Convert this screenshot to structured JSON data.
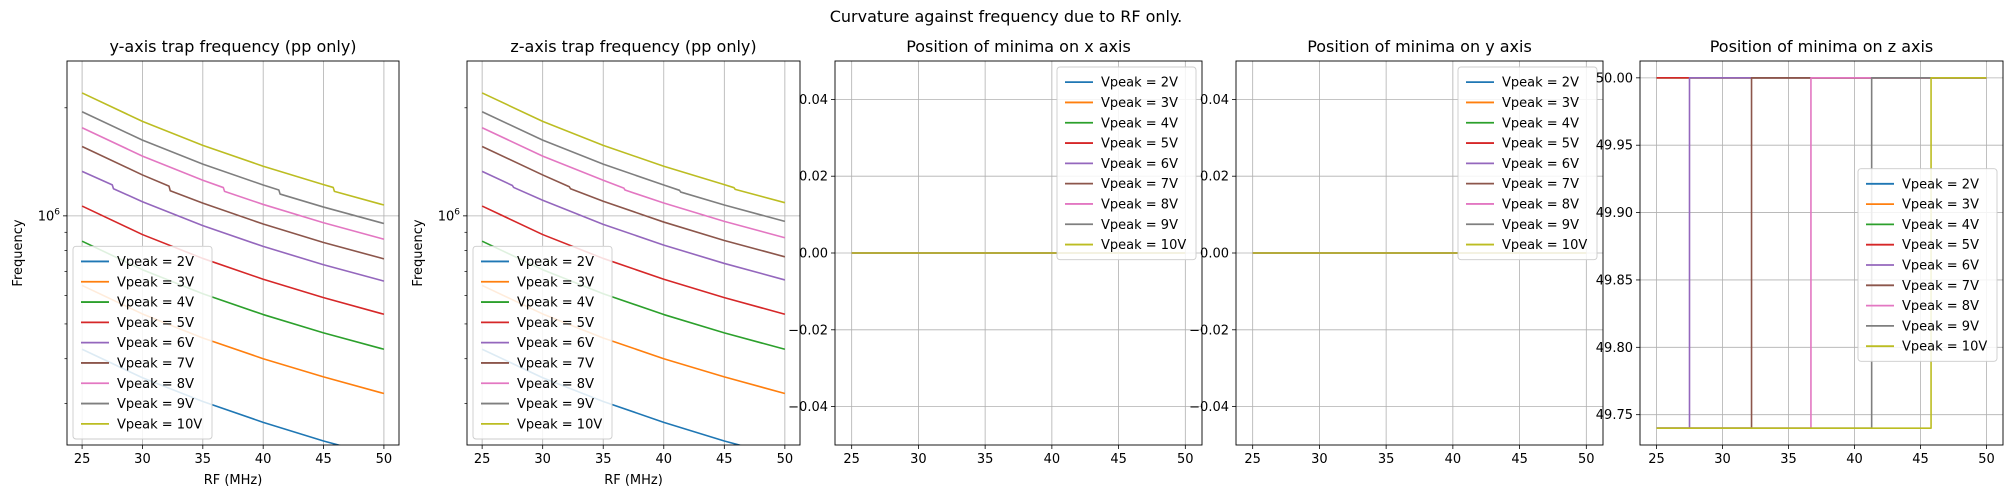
{
  "figure": {
    "suptitle": "Curvature against frequency due to RF only."
  },
  "chart_data": [
    {
      "type": "line",
      "title": "y-axis trap frequency (pp only)",
      "xlabel": "RF (MHz)",
      "ylabel": "Frequency",
      "xlim": [
        23.75,
        51.25
      ],
      "xticks": [
        25,
        30,
        35,
        40,
        45,
        50
      ],
      "yscale": "log",
      "ylim": [
        230000,
        2700000
      ],
      "yticks": [
        {
          "value": 1000000,
          "label": "10^6"
        }
      ],
      "grid": true,
      "legend": "lower-left",
      "series": [
        {
          "name": "Vpeak = 2V",
          "color": "#1f77b4",
          "x": [
            25,
            30,
            35,
            40,
            45,
            50
          ],
          "y": [
            425000,
            354000,
            304000,
            266000,
            236000,
            212500
          ]
        },
        {
          "name": "Vpeak = 3V",
          "color": "#ff7f0e",
          "x": [
            25,
            30,
            35,
            40,
            45,
            50
          ],
          "y": [
            640000,
            533000,
            457000,
            400000,
            356000,
            320000
          ]
        },
        {
          "name": "Vpeak = 4V",
          "color": "#2ca02c",
          "x": [
            25,
            30,
            35,
            40,
            45,
            50
          ],
          "y": [
            850000,
            708000,
            607000,
            531000,
            472000,
            425000
          ]
        },
        {
          "name": "Vpeak = 5V",
          "color": "#d62728",
          "x": [
            25,
            30,
            35,
            40,
            45,
            50
          ],
          "y": [
            1065000,
            887000,
            761000,
            666000,
            592000,
            532000
          ]
        },
        {
          "name": "Vpeak = 6V",
          "color": "#9467bd",
          "x": [
            25,
            27.5,
            27.6,
            30,
            35,
            40,
            45,
            50
          ],
          "y": [
            1330000,
            1220000,
            1190000,
            1095000,
            939000,
            822000,
            731000,
            658000
          ]
        },
        {
          "name": "Vpeak = 7V",
          "color": "#8c564b",
          "x": [
            25,
            30,
            32.2,
            32.3,
            35,
            40,
            45,
            50
          ],
          "y": [
            1560000,
            1300000,
            1210000,
            1175000,
            1085000,
            949000,
            843000,
            759000
          ]
        },
        {
          "name": "Vpeak = 8V",
          "color": "#e377c2",
          "x": [
            25,
            30,
            35,
            36.7,
            36.8,
            40,
            45,
            50
          ],
          "y": [
            1760000,
            1467000,
            1257000,
            1199000,
            1170000,
            1076000,
            957000,
            861000
          ]
        },
        {
          "name": "Vpeak = 9V",
          "color": "#7f7f7f",
          "x": [
            25,
            30,
            35,
            40,
            41.3,
            41.4,
            45,
            50
          ],
          "y": [
            1950000,
            1625000,
            1393000,
            1219000,
            1180000,
            1150000,
            1058000,
            952000
          ]
        },
        {
          "name": "Vpeak = 10V",
          "color": "#bcbd22",
          "x": [
            25,
            30,
            35,
            40,
            45,
            45.8,
            45.9,
            50
          ],
          "y": [
            2200000,
            1833000,
            1571000,
            1375000,
            1222000,
            1200000,
            1170000,
            1072000
          ]
        }
      ]
    },
    {
      "type": "line",
      "title": "z-axis trap frequency (pp only)",
      "xlabel": "RF (MHz)",
      "ylabel": "Frequency",
      "xlim": [
        23.75,
        51.25
      ],
      "xticks": [
        25,
        30,
        35,
        40,
        45,
        50
      ],
      "yscale": "log",
      "ylim": [
        230000,
        2700000
      ],
      "yticks": [
        {
          "value": 1000000,
          "label": "10^6"
        }
      ],
      "grid": true,
      "legend": "lower-left",
      "series": [
        {
          "name": "Vpeak = 2V",
          "color": "#1f77b4",
          "x": [
            25,
            30,
            35,
            40,
            45,
            50
          ],
          "y": [
            425000,
            354000,
            304000,
            266000,
            236000,
            212500
          ]
        },
        {
          "name": "Vpeak = 3V",
          "color": "#ff7f0e",
          "x": [
            25,
            30,
            35,
            40,
            45,
            50
          ],
          "y": [
            640000,
            533000,
            457000,
            400000,
            356000,
            320000
          ]
        },
        {
          "name": "Vpeak = 4V",
          "color": "#2ca02c",
          "x": [
            25,
            30,
            35,
            40,
            45,
            50
          ],
          "y": [
            850000,
            708000,
            607000,
            531000,
            472000,
            425000
          ]
        },
        {
          "name": "Vpeak = 5V",
          "color": "#d62728",
          "x": [
            25,
            30,
            35,
            40,
            45,
            50
          ],
          "y": [
            1065000,
            887000,
            761000,
            666000,
            592000,
            532000
          ]
        },
        {
          "name": "Vpeak = 6V",
          "color": "#9467bd",
          "x": [
            25,
            27.5,
            27.6,
            30,
            35,
            40,
            45,
            50
          ],
          "y": [
            1330000,
            1215000,
            1200000,
            1105000,
            947000,
            829000,
            737000,
            663000
          ]
        },
        {
          "name": "Vpeak = 7V",
          "color": "#8c564b",
          "x": [
            25,
            30,
            32.2,
            32.3,
            35,
            40,
            45,
            50
          ],
          "y": [
            1560000,
            1300000,
            1205000,
            1190000,
            1098000,
            961000,
            854000,
            769000
          ]
        },
        {
          "name": "Vpeak = 8V",
          "color": "#e377c2",
          "x": [
            25,
            30,
            35,
            36.7,
            36.8,
            40,
            45,
            50
          ],
          "y": [
            1760000,
            1467000,
            1257000,
            1195000,
            1180000,
            1086000,
            965000,
            869000
          ]
        },
        {
          "name": "Vpeak = 9V",
          "color": "#7f7f7f",
          "x": [
            25,
            30,
            35,
            40,
            41.3,
            41.4,
            45,
            50
          ],
          "y": [
            1950000,
            1625000,
            1393000,
            1219000,
            1178000,
            1165000,
            1072000,
            965000
          ]
        },
        {
          "name": "Vpeak = 10V",
          "color": "#bcbd22",
          "x": [
            25,
            30,
            35,
            40,
            45,
            45.8,
            45.9,
            50
          ],
          "y": [
            2200000,
            1833000,
            1571000,
            1375000,
            1222000,
            1198000,
            1185000,
            1088000
          ]
        }
      ]
    },
    {
      "type": "line",
      "title": "Position of minima on x axis",
      "xlabel": "",
      "ylabel": "",
      "xlim": [
        23.75,
        51.25
      ],
      "xticks": [
        25,
        30,
        35,
        40,
        45,
        50
      ],
      "yscale": "linear",
      "ylim": [
        -0.05,
        0.05
      ],
      "yticks": [
        {
          "value": 0.04,
          "label": "0.04"
        },
        {
          "value": 0.02,
          "label": "0.02"
        },
        {
          "value": 0,
          "label": "0.00"
        },
        {
          "value": -0.02,
          "label": "−0.02"
        },
        {
          "value": -0.04,
          "label": "−0.04"
        }
      ],
      "grid": true,
      "legend": "upper-right",
      "series": [
        {
          "name": "Vpeak = 2V",
          "color": "#1f77b4",
          "x": [
            25,
            50
          ],
          "y": [
            0,
            0
          ]
        },
        {
          "name": "Vpeak = 3V",
          "color": "#ff7f0e",
          "x": [
            25,
            50
          ],
          "y": [
            0,
            0
          ]
        },
        {
          "name": "Vpeak = 4V",
          "color": "#2ca02c",
          "x": [
            25,
            50
          ],
          "y": [
            0,
            0
          ]
        },
        {
          "name": "Vpeak = 5V",
          "color": "#d62728",
          "x": [
            25,
            50
          ],
          "y": [
            0,
            0
          ]
        },
        {
          "name": "Vpeak = 6V",
          "color": "#9467bd",
          "x": [
            25,
            50
          ],
          "y": [
            0,
            0
          ]
        },
        {
          "name": "Vpeak = 7V",
          "color": "#8c564b",
          "x": [
            25,
            50
          ],
          "y": [
            0,
            0
          ]
        },
        {
          "name": "Vpeak = 8V",
          "color": "#e377c2",
          "x": [
            25,
            50
          ],
          "y": [
            0,
            0
          ]
        },
        {
          "name": "Vpeak = 9V",
          "color": "#7f7f7f",
          "x": [
            25,
            50
          ],
          "y": [
            0,
            0
          ]
        },
        {
          "name": "Vpeak = 10V",
          "color": "#bcbd22",
          "x": [
            25,
            50
          ],
          "y": [
            0,
            0
          ]
        }
      ]
    },
    {
      "type": "line",
      "title": "Position of minima on y axis",
      "xlabel": "",
      "ylabel": "",
      "xlim": [
        23.75,
        51.25
      ],
      "xticks": [
        25,
        30,
        35,
        40,
        45,
        50
      ],
      "yscale": "linear",
      "ylim": [
        -0.05,
        0.05
      ],
      "yticks": [
        {
          "value": 0.04,
          "label": "0.04"
        },
        {
          "value": 0.02,
          "label": "0.02"
        },
        {
          "value": 0,
          "label": "0.00"
        },
        {
          "value": -0.02,
          "label": "−0.02"
        },
        {
          "value": -0.04,
          "label": "−0.04"
        }
      ],
      "grid": true,
      "legend": "upper-right",
      "series": [
        {
          "name": "Vpeak = 2V",
          "color": "#1f77b4",
          "x": [
            25,
            50
          ],
          "y": [
            0,
            0
          ]
        },
        {
          "name": "Vpeak = 3V",
          "color": "#ff7f0e",
          "x": [
            25,
            50
          ],
          "y": [
            0,
            0
          ]
        },
        {
          "name": "Vpeak = 4V",
          "color": "#2ca02c",
          "x": [
            25,
            50
          ],
          "y": [
            0,
            0
          ]
        },
        {
          "name": "Vpeak = 5V",
          "color": "#d62728",
          "x": [
            25,
            50
          ],
          "y": [
            0,
            0
          ]
        },
        {
          "name": "Vpeak = 6V",
          "color": "#9467bd",
          "x": [
            25,
            50
          ],
          "y": [
            0,
            0
          ]
        },
        {
          "name": "Vpeak = 7V",
          "color": "#8c564b",
          "x": [
            25,
            50
          ],
          "y": [
            0,
            0
          ]
        },
        {
          "name": "Vpeak = 8V",
          "color": "#e377c2",
          "x": [
            25,
            50
          ],
          "y": [
            0,
            0
          ]
        },
        {
          "name": "Vpeak = 9V",
          "color": "#7f7f7f",
          "x": [
            25,
            50
          ],
          "y": [
            0,
            0
          ]
        },
        {
          "name": "Vpeak = 10V",
          "color": "#bcbd22",
          "x": [
            25,
            50
          ],
          "y": [
            0,
            0
          ]
        }
      ]
    },
    {
      "type": "line",
      "title": "Position of minima on z axis",
      "xlabel": "",
      "ylabel": "",
      "xlim": [
        23.75,
        51.25
      ],
      "xticks": [
        25,
        30,
        35,
        40,
        45,
        50
      ],
      "yscale": "linear",
      "ylim": [
        49.7275,
        50.0125
      ],
      "yticks": [
        {
          "value": 50.0,
          "label": "50.00"
        },
        {
          "value": 49.95,
          "label": "49.95"
        },
        {
          "value": 49.9,
          "label": "49.90"
        },
        {
          "value": 49.85,
          "label": "49.85"
        },
        {
          "value": 49.8,
          "label": "49.80"
        },
        {
          "value": 49.75,
          "label": "49.75"
        }
      ],
      "grid": true,
      "legend": "right",
      "series": [
        {
          "name": "Vpeak = 2V",
          "color": "#1f77b4",
          "x": [
            25,
            50
          ],
          "y": [
            50.0,
            50.0
          ]
        },
        {
          "name": "Vpeak = 3V",
          "color": "#ff7f0e",
          "x": [
            25,
            50
          ],
          "y": [
            50.0,
            50.0
          ]
        },
        {
          "name": "Vpeak = 4V",
          "color": "#2ca02c",
          "x": [
            25,
            50
          ],
          "y": [
            50.0,
            50.0
          ]
        },
        {
          "name": "Vpeak = 5V",
          "color": "#d62728",
          "x": [
            25,
            50
          ],
          "y": [
            50.0,
            50.0
          ]
        },
        {
          "name": "Vpeak = 6V",
          "color": "#9467bd",
          "x": [
            25,
            27.5,
            27.5,
            50
          ],
          "y": [
            49.74,
            49.74,
            50.0,
            50.0
          ]
        },
        {
          "name": "Vpeak = 7V",
          "color": "#8c564b",
          "x": [
            25,
            32.2,
            32.2,
            50
          ],
          "y": [
            49.74,
            49.74,
            50.0,
            50.0
          ]
        },
        {
          "name": "Vpeak = 8V",
          "color": "#e377c2",
          "x": [
            25,
            36.7,
            36.7,
            50
          ],
          "y": [
            49.74,
            49.74,
            50.0,
            50.0
          ]
        },
        {
          "name": "Vpeak = 9V",
          "color": "#7f7f7f",
          "x": [
            25,
            41.3,
            41.3,
            50
          ],
          "y": [
            49.74,
            49.74,
            50.0,
            50.0
          ]
        },
        {
          "name": "Vpeak = 10V",
          "color": "#bcbd22",
          "x": [
            25,
            45.8,
            45.8,
            50
          ],
          "y": [
            49.74,
            49.74,
            50.0,
            50.0
          ]
        }
      ]
    }
  ]
}
